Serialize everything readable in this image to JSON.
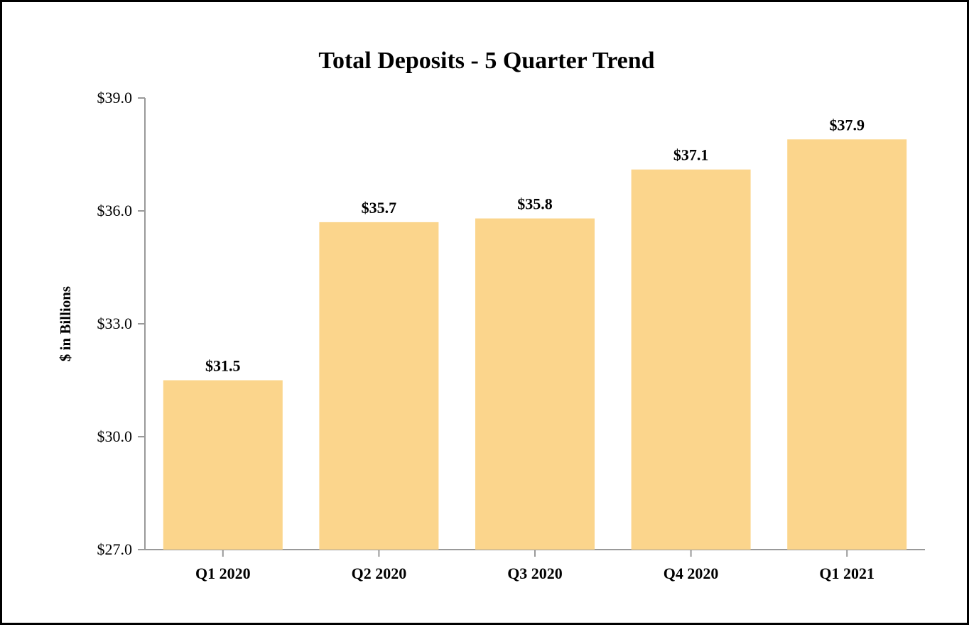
{
  "chart_data": {
    "type": "bar",
    "title": "Total Deposits - 5 Quarter Trend",
    "xlabel": "",
    "ylabel": "$ in Billions",
    "categories": [
      "Q1 2020",
      "Q2 2020",
      "Q3 2020",
      "Q4 2020",
      "Q1 2021"
    ],
    "values": [
      31.5,
      35.7,
      35.8,
      37.1,
      37.9
    ],
    "data_labels": [
      "$31.5",
      "$35.7",
      "$35.8",
      "$37.1",
      "$37.9"
    ],
    "ylim": [
      27.0,
      39.0
    ],
    "yticks": [
      27.0,
      30.0,
      33.0,
      36.0,
      39.0
    ],
    "ytick_labels": [
      "$27.0",
      "$30.0",
      "$33.0",
      "$36.0",
      "$39.0"
    ],
    "grid": false,
    "legend": "none",
    "bar_color": "#fbd58c",
    "axis_color": "#999999"
  }
}
